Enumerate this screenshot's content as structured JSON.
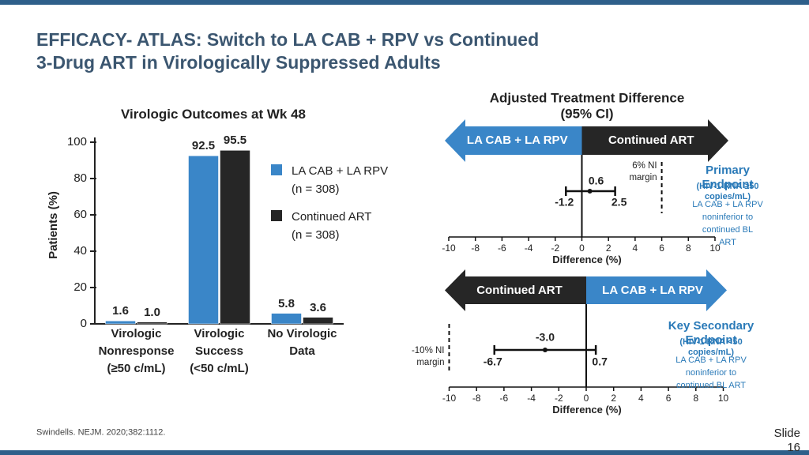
{
  "header": {
    "title": "EFFICACY- ATLAS: Switch to LA CAB + RPV vs Continued\n3-Drug ART in Virologically Suppressed Adults"
  },
  "chart_data": [
    {
      "type": "bar",
      "title": "Virologic Outcomes at Wk 48",
      "ylabel": "Patients (%)",
      "categories": [
        "Virologic\nNonresponse\n(≥50 c/mL)",
        "Virologic\nSuccess\n(<50 c/mL)",
        "No Virologic\nData"
      ],
      "series": [
        {
          "name": "LA CAB + LA RPV\n(n = 308)",
          "color": "#3a86c8",
          "values": [
            1.6,
            92.5,
            5.8
          ],
          "value_labels": [
            "1.6",
            "92.5",
            "5.8"
          ]
        },
        {
          "name": "Continued ART\n(n = 308)",
          "color": "#262626",
          "values": [
            1.0,
            95.5,
            3.6
          ],
          "value_labels": [
            "1.0",
            "95.5",
            "3.6"
          ]
        }
      ],
      "ylim": [
        0,
        100
      ],
      "yticks": [
        0,
        20,
        40,
        60,
        80,
        100
      ]
    },
    {
      "type": "forest",
      "title": "Adjusted Treatment Difference (95% CI)",
      "arrow_labels": [
        "LA CAB + LA RPV",
        "Continued ART"
      ],
      "arrow_colors": [
        "#3a86c8",
        "#262626"
      ],
      "estimate": 0.6,
      "estimate_label": "0.6",
      "ci": [
        -1.2,
        2.5
      ],
      "xlim": [
        -10,
        10
      ],
      "xticks": [
        -10,
        -8,
        -6,
        -4,
        -2,
        0,
        2,
        4,
        6,
        8,
        10
      ],
      "xlabel": "Difference (%)",
      "ni_margin": 6,
      "ni_margin_label": "6% NI\nmargin",
      "endpoint": {
        "title": "Primary Endpoint",
        "criterion": "(HIV-1 RNA ≥50 copies/mL)",
        "conclusion": "LA CAB + LA RPV\nnoninferior to continued BL\nART"
      }
    },
    {
      "type": "forest",
      "arrow_labels": [
        "Continued ART",
        "LA CAB + LA RPV"
      ],
      "arrow_colors": [
        "#262626",
        "#3a86c8"
      ],
      "estimate": -3.0,
      "estimate_label": "-3.0",
      "ci": [
        -6.7,
        0.7
      ],
      "xlim": [
        -10,
        10
      ],
      "xticks": [
        -10,
        -8,
        -6,
        -4,
        -2,
        0,
        2,
        4,
        6,
        8,
        10
      ],
      "xlabel": "Difference (%)",
      "ni_margin": -10,
      "ni_margin_label": "-10% NI\nmargin",
      "endpoint": {
        "title": "Key Secondary Endpoint",
        "criterion": "(HIV-1 RNA <50 copies/mL)",
        "conclusion": "LA CAB + LA RPV noninferior to\ncontinued BL ART"
      }
    }
  ],
  "footer": {
    "source": "Swindells. NEJM. 2020;382:1112.",
    "slide_number": "Slide 16"
  }
}
